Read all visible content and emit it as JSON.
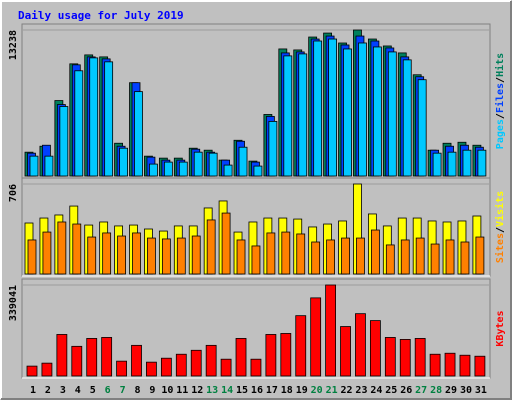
{
  "title": "Daily usage for July 2019",
  "legend_separator": "/",
  "chart_data": [
    {
      "type": "bar",
      "series": [
        {
          "name": "Hits",
          "color": "#00805c",
          "values": [
            2160,
            2700,
            6840,
            10170,
            10980,
            10800,
            2970,
            8460,
            1800,
            1620,
            1620,
            2520,
            2340,
            1440,
            3240,
            1350,
            5580,
            11520,
            11430,
            12600,
            12960,
            12060,
            13238,
            12420,
            11790,
            11160,
            9180,
            2340,
            2970,
            3060,
            2790
          ]
        },
        {
          "name": "Files",
          "color": "#0040ff",
          "values": [
            2070,
            2790,
            6480,
            10080,
            10800,
            10620,
            2700,
            8460,
            1710,
            1440,
            1440,
            2430,
            2160,
            1440,
            3150,
            1260,
            5400,
            11160,
            11250,
            12420,
            12690,
            11880,
            12690,
            12240,
            11610,
            10800,
            9000,
            2340,
            2700,
            2790,
            2610
          ]
        },
        {
          "name": "Pages",
          "color": "#00c8ff",
          "values": [
            1800,
            1800,
            6300,
            9540,
            10710,
            10350,
            2520,
            7650,
            1080,
            1260,
            1260,
            2160,
            2070,
            990,
            2610,
            900,
            4950,
            10890,
            11070,
            12240,
            12420,
            11520,
            12060,
            11700,
            11250,
            10530,
            8730,
            2070,
            2160,
            2340,
            2340
          ]
        }
      ],
      "ylim": [
        0,
        13238
      ],
      "yticks": [
        13238
      ]
    },
    {
      "type": "bar",
      "series": [
        {
          "name": "Visits",
          "color": "#ffff00",
          "values": [
            400,
            439,
            463,
            533,
            384,
            408,
            377,
            384,
            353,
            337,
            377,
            377,
            518,
            573,
            329,
            408,
            439,
            439,
            431,
            369,
            392,
            416,
            706,
            471,
            377,
            439,
            439,
            416,
            408,
            416,
            455
          ]
        },
        {
          "name": "Sites",
          "color": "#ff8000",
          "values": [
            267,
            329,
            408,
            392,
            290,
            322,
            298,
            322,
            282,
            275,
            282,
            298,
            424,
            478,
            267,
            220,
            322,
            329,
            314,
            251,
            267,
            282,
            282,
            345,
            228,
            267,
            282,
            235,
            267,
            251,
            290
          ]
        }
      ],
      "ylim": [
        0,
        706
      ],
      "yticks": [
        706
      ]
    },
    {
      "type": "bar",
      "categories": [
        "1",
        "2",
        "3",
        "4",
        "5",
        "6",
        "7",
        "8",
        "9",
        "10",
        "11",
        "12",
        "13",
        "14",
        "15",
        "16",
        "17",
        "18",
        "19",
        "20",
        "21",
        "22",
        "23",
        "24",
        "25",
        "26",
        "27",
        "28",
        "29",
        "30",
        "31"
      ],
      "category_colors": [
        "#000000",
        "#000000",
        "#000000",
        "#000000",
        "#000000",
        "#008040",
        "#008040",
        "#000000",
        "#000000",
        "#000000",
        "#000000",
        "#000000",
        "#008040",
        "#008040",
        "#000000",
        "#000000",
        "#000000",
        "#000000",
        "#000000",
        "#008040",
        "#008040",
        "#000000",
        "#000000",
        "#000000",
        "#000000",
        "#000000",
        "#008040",
        "#008040",
        "#000000",
        "#000000",
        "#000000"
      ],
      "series": [
        {
          "name": "KBytes",
          "color": "#ff0000",
          "values": [
            36850,
            47900,
            154800,
            110550,
            140000,
            143700,
            55300,
            114200,
            51600,
            66300,
            81100,
            95800,
            114200,
            62600,
            140000,
            62600,
            154800,
            158500,
            224800,
            291100,
            339041,
            184300,
            232200,
            206400,
            143700,
            136300,
            140000,
            81100,
            84800,
            77400,
            73700
          ]
        }
      ],
      "ylim": [
        0,
        339041
      ],
      "yticks": [
        339041
      ]
    }
  ]
}
